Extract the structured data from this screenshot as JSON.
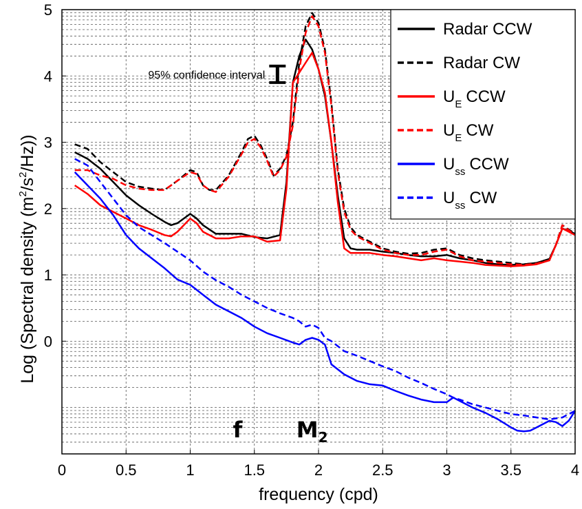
{
  "chart_data": {
    "type": "line",
    "xlabel": "frequency (cpd)",
    "ylabel_parts": {
      "pre": "Log (Spectral density (m",
      "sup1": "2",
      "mid": "/s",
      "sup2": "2",
      "post": "/Hz))"
    },
    "xlim": [
      0,
      4
    ],
    "ylim": [
      -1.7,
      5
    ],
    "x_ticks": [
      0,
      0.5,
      1,
      1.5,
      2,
      2.5,
      3,
      3.5,
      4
    ],
    "x_tick_labels": [
      "0",
      "0.5",
      "1",
      "1.5",
      "2",
      "2.5",
      "3",
      "3.5",
      "4"
    ],
    "y_ticks": [
      0,
      1,
      2,
      3,
      4,
      5
    ],
    "y_tick_labels": [
      "0",
      "1",
      "2",
      "3",
      "4",
      "5"
    ],
    "grid": true,
    "log_grid_minor": true,
    "legend_placement": "top-right",
    "annotations": {
      "confidence_label": "95% confidence interval",
      "confidence_bar": {
        "x": 1.68,
        "y_low": 3.9,
        "y_high": 4.15
      },
      "f_label": {
        "text": "f",
        "x": 1.37,
        "y": -1.45
      },
      "m2_label": {
        "text": "M",
        "sub": "2",
        "x": 1.95,
        "y": -1.45
      }
    },
    "series": [
      {
        "name": "Radar CCW",
        "legend_main": "Radar CCW",
        "legend_sub": "",
        "legend_tail": "",
        "color": "#000000",
        "dash": "solid",
        "x": [
          0.1,
          0.2,
          0.3,
          0.4,
          0.5,
          0.6,
          0.7,
          0.8,
          0.85,
          0.9,
          1.0,
          1.05,
          1.1,
          1.2,
          1.3,
          1.4,
          1.5,
          1.6,
          1.7,
          1.75,
          1.8,
          1.85,
          1.9,
          1.95,
          2.0,
          2.05,
          2.1,
          2.15,
          2.2,
          2.25,
          2.3,
          2.4,
          2.5,
          2.6,
          2.7,
          2.8,
          2.9,
          3.0,
          3.1,
          3.2,
          3.3,
          3.4,
          3.5,
          3.6,
          3.7,
          3.8,
          3.85,
          3.9,
          4.0
        ],
        "y": [
          2.85,
          2.75,
          2.6,
          2.4,
          2.2,
          2.05,
          1.92,
          1.8,
          1.75,
          1.78,
          1.92,
          1.85,
          1.75,
          1.62,
          1.62,
          1.62,
          1.57,
          1.55,
          1.6,
          2.4,
          3.9,
          4.3,
          4.55,
          4.4,
          4.1,
          3.7,
          3.0,
          2.2,
          1.55,
          1.4,
          1.38,
          1.38,
          1.35,
          1.33,
          1.3,
          1.28,
          1.28,
          1.3,
          1.25,
          1.22,
          1.18,
          1.16,
          1.15,
          1.16,
          1.18,
          1.24,
          1.45,
          1.7,
          1.62
        ]
      },
      {
        "name": "Radar CW",
        "legend_main": "Radar CW",
        "legend_sub": "",
        "legend_tail": "",
        "color": "#000000",
        "dash": "dashed",
        "x": [
          0.1,
          0.2,
          0.3,
          0.4,
          0.5,
          0.6,
          0.7,
          0.8,
          0.9,
          1.0,
          1.05,
          1.1,
          1.15,
          1.2,
          1.3,
          1.4,
          1.45,
          1.5,
          1.55,
          1.6,
          1.65,
          1.7,
          1.75,
          1.8,
          1.85,
          1.9,
          1.95,
          2.0,
          2.05,
          2.1,
          2.15,
          2.2,
          2.25,
          2.3,
          2.4,
          2.5,
          2.6,
          2.7,
          2.8,
          2.9,
          3.0,
          3.1,
          3.2,
          3.3,
          3.4,
          3.5,
          3.6,
          3.7,
          3.8,
          3.85,
          3.9,
          4.0
        ],
        "y": [
          2.97,
          2.9,
          2.7,
          2.55,
          2.4,
          2.33,
          2.3,
          2.28,
          2.42,
          2.58,
          2.55,
          2.35,
          2.28,
          2.28,
          2.5,
          2.85,
          3.05,
          3.1,
          2.95,
          2.75,
          2.5,
          2.6,
          2.8,
          3.3,
          4.2,
          4.75,
          4.95,
          4.8,
          4.4,
          3.6,
          2.6,
          2.0,
          1.72,
          1.6,
          1.5,
          1.4,
          1.35,
          1.32,
          1.33,
          1.38,
          1.4,
          1.3,
          1.25,
          1.22,
          1.2,
          1.18,
          1.16,
          1.18,
          1.24,
          1.45,
          1.75,
          1.62
        ]
      },
      {
        "name": "U_E CCW",
        "legend_main": "U",
        "legend_sub": "E",
        "legend_tail": "CCW",
        "color": "#ff0000",
        "dash": "solid",
        "x": [
          0.1,
          0.2,
          0.3,
          0.4,
          0.5,
          0.6,
          0.7,
          0.8,
          0.85,
          0.9,
          1.0,
          1.05,
          1.1,
          1.2,
          1.3,
          1.4,
          1.5,
          1.6,
          1.7,
          1.75,
          1.8,
          1.85,
          1.9,
          1.95,
          2.0,
          2.05,
          2.1,
          2.15,
          2.2,
          2.25,
          2.3,
          2.4,
          2.5,
          2.6,
          2.7,
          2.8,
          2.9,
          3.0,
          3.1,
          3.2,
          3.3,
          3.4,
          3.5,
          3.6,
          3.7,
          3.8,
          3.85,
          3.9,
          4.0
        ],
        "y": [
          2.35,
          2.22,
          2.05,
          1.95,
          1.85,
          1.75,
          1.68,
          1.6,
          1.58,
          1.65,
          1.85,
          1.78,
          1.65,
          1.55,
          1.55,
          1.58,
          1.58,
          1.5,
          1.52,
          2.3,
          3.9,
          4.05,
          4.2,
          4.35,
          4.1,
          3.75,
          3.0,
          2.1,
          1.4,
          1.33,
          1.33,
          1.33,
          1.3,
          1.28,
          1.25,
          1.22,
          1.25,
          1.22,
          1.2,
          1.18,
          1.15,
          1.14,
          1.13,
          1.14,
          1.16,
          1.22,
          1.45,
          1.7,
          1.6
        ]
      },
      {
        "name": "U_E CW",
        "legend_main": "U",
        "legend_sub": "E",
        "legend_tail": "CW",
        "color": "#ff0000",
        "dash": "dashed",
        "x": [
          0.1,
          0.2,
          0.3,
          0.4,
          0.5,
          0.6,
          0.7,
          0.8,
          0.9,
          1.0,
          1.05,
          1.1,
          1.15,
          1.2,
          1.3,
          1.4,
          1.45,
          1.5,
          1.55,
          1.6,
          1.65,
          1.7,
          1.75,
          1.8,
          1.85,
          1.9,
          1.95,
          2.0,
          2.05,
          2.1,
          2.15,
          2.2,
          2.25,
          2.3,
          2.4,
          2.5,
          2.6,
          2.7,
          2.8,
          2.9,
          3.0,
          3.1,
          3.2,
          3.3,
          3.4,
          3.5,
          3.6,
          3.7,
          3.8,
          3.85,
          3.9,
          4.0
        ],
        "y": [
          2.58,
          2.58,
          2.5,
          2.45,
          2.35,
          2.3,
          2.28,
          2.28,
          2.42,
          2.55,
          2.52,
          2.35,
          2.28,
          2.25,
          2.48,
          2.82,
          3.0,
          3.05,
          2.92,
          2.72,
          2.48,
          2.58,
          2.78,
          3.25,
          4.1,
          4.65,
          4.9,
          4.75,
          4.35,
          3.55,
          2.55,
          1.95,
          1.68,
          1.58,
          1.48,
          1.38,
          1.33,
          1.3,
          1.3,
          1.35,
          1.38,
          1.28,
          1.22,
          1.2,
          1.18,
          1.16,
          1.15,
          1.17,
          1.22,
          1.45,
          1.75,
          1.6
        ]
      },
      {
        "name": "U_ss CCW",
        "legend_main": "U",
        "legend_sub": "ss",
        "legend_tail": "CCW",
        "color": "#0000ff",
        "dash": "solid",
        "x": [
          0.1,
          0.2,
          0.3,
          0.4,
          0.5,
          0.6,
          0.7,
          0.8,
          0.9,
          1.0,
          1.1,
          1.2,
          1.3,
          1.4,
          1.5,
          1.6,
          1.7,
          1.8,
          1.85,
          1.9,
          1.95,
          2.0,
          2.05,
          2.1,
          2.2,
          2.3,
          2.4,
          2.5,
          2.6,
          2.7,
          2.8,
          2.9,
          3.0,
          3.05,
          3.1,
          3.2,
          3.3,
          3.4,
          3.5,
          3.55,
          3.6,
          3.65,
          3.7,
          3.8,
          3.85,
          3.9,
          3.95,
          4.0
        ],
        "y": [
          2.55,
          2.35,
          2.15,
          1.9,
          1.6,
          1.4,
          1.25,
          1.1,
          0.93,
          0.85,
          0.7,
          0.55,
          0.45,
          0.35,
          0.22,
          0.12,
          0.05,
          -0.02,
          -0.05,
          0.02,
          0.05,
          0.02,
          -0.05,
          -0.35,
          -0.5,
          -0.6,
          -0.65,
          -0.67,
          -0.75,
          -0.82,
          -0.88,
          -0.92,
          -0.92,
          -0.85,
          -0.9,
          -1.0,
          -1.08,
          -1.18,
          -1.3,
          -1.35,
          -1.36,
          -1.35,
          -1.3,
          -1.2,
          -1.22,
          -1.28,
          -1.2,
          -1.05
        ]
      },
      {
        "name": "U_ss CW",
        "legend_main": "U",
        "legend_sub": "ss",
        "legend_tail": "CW",
        "color": "#0000ff",
        "dash": "dashed",
        "x": [
          0.1,
          0.2,
          0.3,
          0.4,
          0.5,
          0.6,
          0.7,
          0.8,
          0.9,
          1.0,
          1.1,
          1.2,
          1.3,
          1.4,
          1.5,
          1.6,
          1.7,
          1.8,
          1.85,
          1.9,
          1.95,
          2.0,
          2.05,
          2.1,
          2.2,
          2.3,
          2.4,
          2.5,
          2.6,
          2.7,
          2.8,
          2.9,
          3.0,
          3.05,
          3.1,
          3.2,
          3.3,
          3.4,
          3.5,
          3.6,
          3.7,
          3.8,
          3.9,
          4.0
        ],
        "y": [
          2.75,
          2.65,
          2.4,
          2.15,
          1.9,
          1.72,
          1.6,
          1.48,
          1.35,
          1.22,
          1.05,
          0.92,
          0.82,
          0.7,
          0.6,
          0.5,
          0.42,
          0.35,
          0.3,
          0.22,
          0.25,
          0.2,
          0.05,
          0.0,
          -0.15,
          -0.22,
          -0.3,
          -0.38,
          -0.45,
          -0.55,
          -0.63,
          -0.72,
          -0.8,
          -0.85,
          -0.88,
          -0.95,
          -1.0,
          -1.05,
          -1.1,
          -1.12,
          -1.15,
          -1.18,
          -1.15,
          -1.05
        ]
      }
    ]
  }
}
